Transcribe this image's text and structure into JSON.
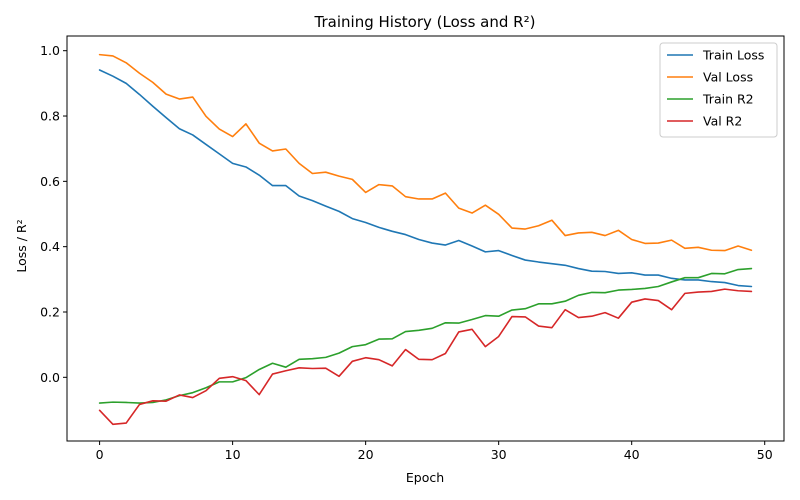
{
  "chart_data": {
    "type": "line",
    "title": "Training History (Loss and R²)",
    "xlabel": "Epoch",
    "ylabel": "Loss / R²",
    "xlim": [
      -2.45,
      51.45
    ],
    "ylim": [
      -0.195,
      1.045
    ],
    "xticks": [
      0,
      10,
      20,
      30,
      40,
      50
    ],
    "yticks": [
      0.0,
      0.2,
      0.4,
      0.6,
      0.8,
      1.0
    ],
    "ytick_labels": [
      "0.0",
      "0.2",
      "0.4",
      "0.6",
      "0.8",
      "1.0"
    ],
    "grid": false,
    "legend_position": "top-right",
    "x": [
      0,
      1,
      2,
      3,
      4,
      5,
      6,
      7,
      8,
      9,
      10,
      11,
      12,
      13,
      14,
      15,
      16,
      17,
      18,
      19,
      20,
      21,
      22,
      23,
      24,
      25,
      26,
      27,
      28,
      29,
      30,
      31,
      32,
      33,
      34,
      35,
      36,
      37,
      38,
      39,
      40,
      41,
      42,
      43,
      44,
      45,
      46,
      47,
      48,
      49
    ],
    "series": [
      {
        "name": "Train Loss",
        "color": "#1f77b4",
        "values": [
          0.941,
          0.922,
          0.9,
          0.866,
          0.83,
          0.795,
          0.761,
          0.742,
          0.713,
          0.684,
          0.655,
          0.644,
          0.619,
          0.587,
          0.587,
          0.555,
          0.541,
          0.524,
          0.508,
          0.486,
          0.474,
          0.459,
          0.447,
          0.437,
          0.422,
          0.411,
          0.405,
          0.419,
          0.402,
          0.384,
          0.388,
          0.373,
          0.359,
          0.353,
          0.348,
          0.343,
          0.333,
          0.325,
          0.324,
          0.318,
          0.32,
          0.313,
          0.313,
          0.303,
          0.298,
          0.298,
          0.293,
          0.29,
          0.281,
          0.278
        ]
      },
      {
        "name": "Val Loss",
        "color": "#ff7f0e",
        "values": [
          0.988,
          0.984,
          0.963,
          0.931,
          0.903,
          0.867,
          0.852,
          0.858,
          0.799,
          0.76,
          0.737,
          0.776,
          0.717,
          0.693,
          0.699,
          0.655,
          0.624,
          0.628,
          0.616,
          0.606,
          0.566,
          0.59,
          0.586,
          0.553,
          0.546,
          0.546,
          0.564,
          0.518,
          0.503,
          0.527,
          0.499,
          0.457,
          0.454,
          0.464,
          0.481,
          0.434,
          0.442,
          0.444,
          0.434,
          0.45,
          0.422,
          0.41,
          0.411,
          0.42,
          0.395,
          0.398,
          0.389,
          0.388,
          0.402,
          0.389
        ]
      },
      {
        "name": "Train R2",
        "color": "#2ca02c",
        "values": [
          -0.079,
          -0.076,
          -0.077,
          -0.079,
          -0.077,
          -0.069,
          -0.056,
          -0.047,
          -0.032,
          -0.014,
          -0.014,
          -0.001,
          0.024,
          0.043,
          0.031,
          0.055,
          0.057,
          0.061,
          0.074,
          0.094,
          0.1,
          0.117,
          0.118,
          0.14,
          0.144,
          0.15,
          0.167,
          0.166,
          0.177,
          0.189,
          0.187,
          0.206,
          0.21,
          0.225,
          0.225,
          0.233,
          0.251,
          0.26,
          0.259,
          0.267,
          0.269,
          0.272,
          0.278,
          0.292,
          0.305,
          0.305,
          0.318,
          0.317,
          0.33,
          0.333
        ]
      },
      {
        "name": "Val R2",
        "color": "#d62728",
        "values": [
          -0.101,
          -0.144,
          -0.14,
          -0.083,
          -0.072,
          -0.073,
          -0.054,
          -0.062,
          -0.041,
          -0.003,
          0.002,
          -0.01,
          -0.053,
          0.01,
          0.02,
          0.029,
          0.027,
          0.028,
          0.003,
          0.049,
          0.06,
          0.054,
          0.035,
          0.085,
          0.055,
          0.054,
          0.073,
          0.139,
          0.147,
          0.094,
          0.125,
          0.186,
          0.185,
          0.157,
          0.152,
          0.207,
          0.183,
          0.187,
          0.198,
          0.181,
          0.23,
          0.24,
          0.235,
          0.207,
          0.257,
          0.261,
          0.263,
          0.27,
          0.265,
          0.263
        ]
      }
    ]
  }
}
